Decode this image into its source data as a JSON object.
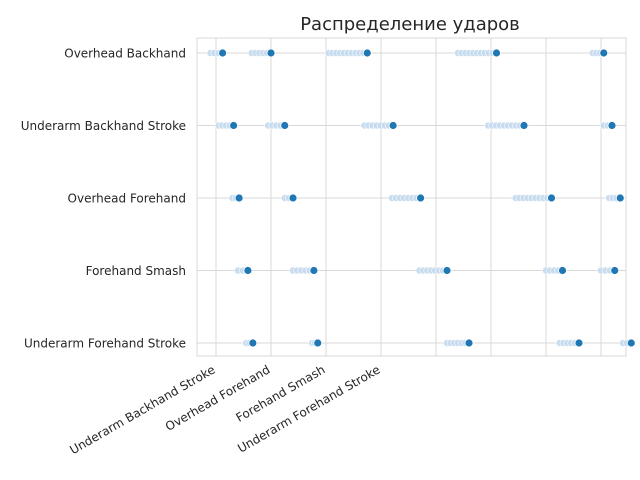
{
  "chart_data": {
    "type": "scatter",
    "title": "Распределение ударов",
    "xlabel": "",
    "ylabel": "",
    "grid": true,
    "style": "whitegrid",
    "x_tick_labels": [
      "Underarm Backhand Stroke",
      "Overhead Forehand",
      "Forehand Smash",
      "Underarm Forehand Stroke"
    ],
    "y_tick_labels": [
      "Overhead Backhand",
      "Underarm Backhand Stroke",
      "Overhead Forehand",
      "Forehand Smash",
      "Underarm Forehand Stroke"
    ],
    "colors": {
      "point": "#1f77b4",
      "trail": "#c6dbef",
      "grid": "#d9d9d9",
      "text": "#262626",
      "title": "#262626"
    },
    "series": [
      {
        "category": "Overhead Backhand",
        "points": [
          {
            "x": 0.12,
            "trail": [
              -0.1,
              0.12
            ]
          },
          {
            "x": 1.0,
            "trail": [
              0.65,
              1.0
            ]
          },
          {
            "x": 2.75,
            "trail": [
              2.05,
              2.75
            ]
          },
          {
            "x": 5.1,
            "trail": [
              4.4,
              5.1
            ]
          },
          {
            "x": 7.05,
            "trail": [
              6.85,
              7.05
            ]
          }
        ]
      },
      {
        "category": "Underarm Backhand Stroke",
        "points": [
          {
            "x": 0.32,
            "trail": [
              0.05,
              0.32
            ]
          },
          {
            "x": 1.25,
            "trail": [
              0.95,
              1.25
            ]
          },
          {
            "x": 3.22,
            "trail": [
              2.7,
              3.22
            ]
          },
          {
            "x": 5.6,
            "trail": [
              4.95,
              5.6
            ]
          },
          {
            "x": 7.2,
            "trail": [
              7.05,
              7.2
            ]
          }
        ]
      },
      {
        "category": "Overhead Forehand",
        "points": [
          {
            "x": 0.42,
            "trail": [
              0.3,
              0.42
            ]
          },
          {
            "x": 1.4,
            "trail": [
              1.25,
              1.4
            ]
          },
          {
            "x": 3.72,
            "trail": [
              3.2,
              3.72
            ]
          },
          {
            "x": 6.1,
            "trail": [
              5.45,
              6.1
            ]
          },
          {
            "x": 7.35,
            "trail": [
              7.15,
              7.35
            ]
          }
        ]
      },
      {
        "category": "Forehand Smash",
        "points": [
          {
            "x": 0.58,
            "trail": [
              0.4,
              0.58
            ]
          },
          {
            "x": 1.78,
            "trail": [
              1.4,
              1.78
            ]
          },
          {
            "x": 4.2,
            "trail": [
              3.7,
              4.2
            ]
          },
          {
            "x": 6.3,
            "trail": [
              6.0,
              6.3
            ]
          },
          {
            "x": 7.25,
            "trail": [
              7.0,
              7.25
            ]
          }
        ]
      },
      {
        "category": "Underarm Forehand Stroke",
        "points": [
          {
            "x": 0.67,
            "trail": [
              0.55,
              0.67
            ]
          },
          {
            "x": 1.85,
            "trail": [
              1.75,
              1.85
            ]
          },
          {
            "x": 4.6,
            "trail": [
              4.2,
              4.6
            ]
          },
          {
            "x": 6.6,
            "trail": [
              6.25,
              6.6
            ]
          },
          {
            "x": 7.55,
            "trail": [
              7.4,
              7.55
            ]
          }
        ]
      }
    ]
  }
}
